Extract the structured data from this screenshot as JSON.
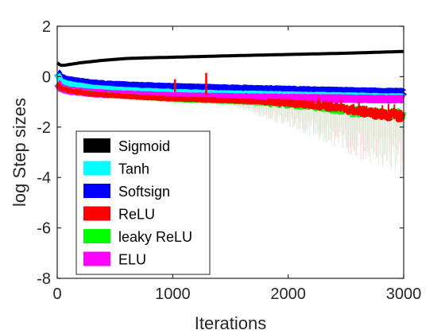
{
  "chart_data": {
    "type": "line",
    "xlabel": "Iterations",
    "ylabel": "log Step sizes",
    "xlim": [
      0,
      3000
    ],
    "ylim": [
      -8,
      2
    ],
    "x_ticks": [
      0,
      1000,
      2000,
      3000
    ],
    "x_tick_labels": [
      "0",
      "1000",
      "2000",
      "3000"
    ],
    "y_ticks": [
      -8,
      -6,
      -4,
      -2,
      0,
      2
    ],
    "y_tick_labels": [
      "-8",
      "-6",
      "-4",
      "-2",
      "0",
      "2"
    ],
    "grid": false,
    "legend": "bottom-left",
    "series": [
      {
        "name": "Sigmoid",
        "color": "#000000",
        "x": [
          0,
          30,
          60,
          100,
          200,
          400,
          600,
          800,
          1000,
          1500,
          2000,
          2500,
          3000
        ],
        "y": [
          0.55,
          0.45,
          0.45,
          0.48,
          0.55,
          0.65,
          0.72,
          0.75,
          0.77,
          0.83,
          0.88,
          0.93,
          1.0
        ]
      },
      {
        "name": "Tanh",
        "color": "#00ffff",
        "x": [
          0,
          30,
          100,
          300,
          600,
          1000,
          1500,
          2000,
          2500,
          3000
        ],
        "y": [
          0.1,
          -0.2,
          -0.3,
          -0.45,
          -0.55,
          -0.62,
          -0.68,
          -0.72,
          -0.76,
          -0.8
        ]
      },
      {
        "name": "Softsign",
        "color": "#0000ff",
        "x": [
          0,
          30,
          100,
          300,
          600,
          1000,
          1500,
          2000,
          2500,
          3000
        ],
        "y": [
          0.15,
          -0.05,
          -0.15,
          -0.28,
          -0.36,
          -0.42,
          -0.48,
          -0.53,
          -0.58,
          -0.62
        ]
      },
      {
        "name": "ReLU",
        "color": "#ff0000",
        "x": [
          0,
          30,
          100,
          300,
          600,
          1000,
          1500,
          2000,
          2300,
          2600,
          2800,
          3000
        ],
        "y": [
          -0.3,
          -0.45,
          -0.55,
          -0.68,
          -0.78,
          -0.88,
          -0.95,
          -1.05,
          -1.15,
          -1.35,
          -1.5,
          -1.55
        ]
      },
      {
        "name": "leaky ReLU",
        "color": "#00ff00",
        "x": [
          0,
          30,
          100,
          300,
          600,
          1000,
          1500,
          2000,
          2300,
          2600,
          2800,
          3000
        ],
        "y": [
          -0.3,
          -0.45,
          -0.55,
          -0.68,
          -0.78,
          -0.9,
          -0.98,
          -1.1,
          -1.2,
          -1.4,
          -1.5,
          -1.5
        ]
      },
      {
        "name": "ELU",
        "color": "#ff00ff",
        "x": [
          0,
          30,
          100,
          300,
          600,
          1000,
          1500,
          2000,
          2500,
          3000
        ],
        "y": [
          -0.25,
          -0.45,
          -0.55,
          -0.65,
          -0.72,
          -0.78,
          -0.82,
          -0.85,
          -0.87,
          -0.9
        ]
      }
    ],
    "annotations": [
      {
        "series": "ReLU",
        "x": 1020,
        "y_low": -0.6,
        "y_high": -0.1
      },
      {
        "series": "ReLU",
        "x": 1290,
        "y_low": -0.75,
        "y_high": 0.15
      }
    ]
  }
}
